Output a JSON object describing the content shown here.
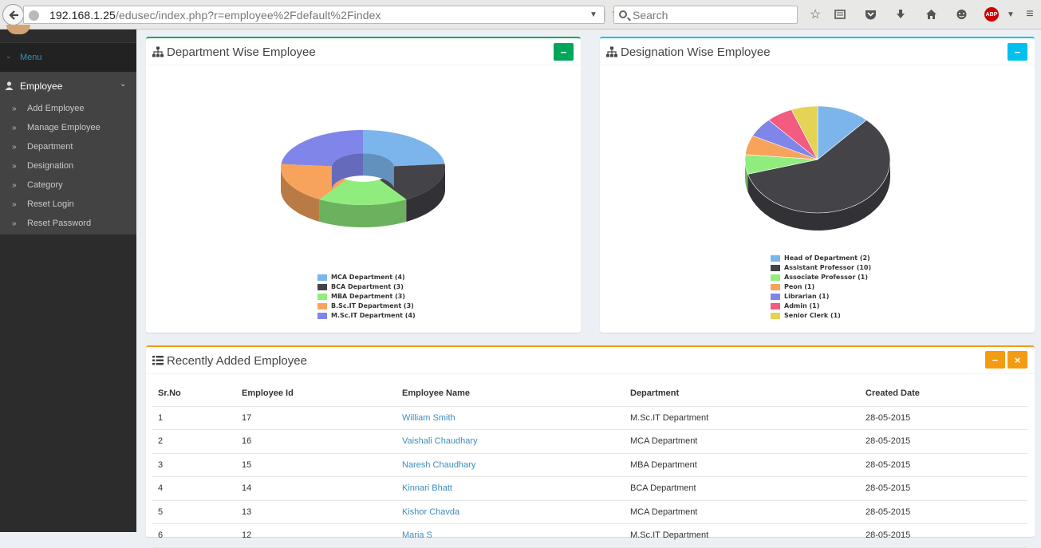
{
  "browser": {
    "url_host": "192.168.1.25",
    "url_path": "/edusec/index.php?r=employee%2Fdefault%2Findex",
    "search_placeholder": "Search",
    "abp_label": "ABP"
  },
  "sidebar": {
    "menu_label": "Menu",
    "section_label": "Employee",
    "items": [
      {
        "label": "Add Employee"
      },
      {
        "label": "Manage Employee"
      },
      {
        "label": "Department"
      },
      {
        "label": "Designation"
      },
      {
        "label": "Category"
      },
      {
        "label": "Reset Login"
      },
      {
        "label": "Reset Password"
      }
    ]
  },
  "department_box": {
    "title": "Department Wise Employee",
    "collapse_label": "−",
    "accent": "#00a65a"
  },
  "designation_box": {
    "title": "Designation Wise Employee",
    "collapse_label": "−",
    "accent": "#00c0ef"
  },
  "chart_data": [
    {
      "type": "pie",
      "variant": "donut-3d",
      "title": "Department Wise Employee",
      "categories": [
        "MCA Department",
        "BCA Department",
        "MBA Department",
        "B.Sc.IT Department",
        "M.Sc.IT Department"
      ],
      "values": [
        4,
        3,
        3,
        3,
        4
      ],
      "legend_labels": [
        "MCA Department (4)",
        "BCA Department (3)",
        "MBA Department (3)",
        "B.Sc.IT Department (3)",
        "M.Sc.IT Department (4)"
      ],
      "colors": [
        "#7cb5ec",
        "#434348",
        "#90ed7d",
        "#f7a35c",
        "#8085e9"
      ],
      "legend_position": "bottom-center"
    },
    {
      "type": "pie",
      "variant": "pie-3d",
      "title": "Designation Wise Employee",
      "categories": [
        "Head of Department",
        "Assistant Professor",
        "Associate Professor",
        "Peon",
        "Librarian",
        "Admin",
        "Senior Clerk"
      ],
      "values": [
        2,
        10,
        1,
        1,
        1,
        1,
        1
      ],
      "legend_labels": [
        "Head of Department (2)",
        "Assistant Professor (10)",
        "Associate Professor (1)",
        "Peon (1)",
        "Librarian (1)",
        "Admin (1)",
        "Senior Clerk (1)"
      ],
      "colors": [
        "#7cb5ec",
        "#434348",
        "#90ed7d",
        "#f7a35c",
        "#8085e9",
        "#f15c80",
        "#e4d354"
      ],
      "legend_position": "bottom-center"
    }
  ],
  "recent_box": {
    "title": "Recently Added Employee",
    "collapse_label": "−",
    "close_label": "×",
    "accent": "#f39c12",
    "columns": [
      "Sr.No",
      "Employee Id",
      "Employee Name",
      "Department",
      "Created Date"
    ],
    "rows": [
      {
        "sr": "1",
        "id": "17",
        "name": "William Smith",
        "dept": "M.Sc.IT Department",
        "date": "28-05-2015"
      },
      {
        "sr": "2",
        "id": "16",
        "name": "Vaishali Chaudhary",
        "dept": "MCA Department",
        "date": "28-05-2015"
      },
      {
        "sr": "3",
        "id": "15",
        "name": "Naresh Chaudhary",
        "dept": "MBA Department",
        "date": "28-05-2015"
      },
      {
        "sr": "4",
        "id": "14",
        "name": "Kinnari Bhatt",
        "dept": "BCA Department",
        "date": "28-05-2015"
      },
      {
        "sr": "5",
        "id": "13",
        "name": "Kishor Chavda",
        "dept": "MCA Department",
        "date": "28-05-2015"
      },
      {
        "sr": "6",
        "id": "12",
        "name": "Maria S",
        "dept": "M.Sc.IT Department",
        "date": "28-05-2015"
      }
    ]
  }
}
